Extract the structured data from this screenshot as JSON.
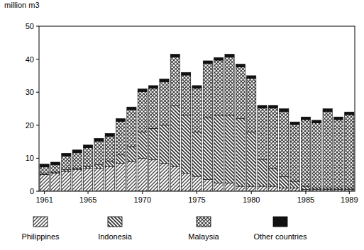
{
  "chart_data": {
    "type": "bar",
    "stacked": true,
    "y_label": "million m3",
    "categories": [
      "1961",
      null,
      null,
      null,
      "1965",
      null,
      null,
      null,
      null,
      "1970",
      null,
      null,
      null,
      null,
      "1975",
      null,
      null,
      null,
      null,
      "1980",
      null,
      null,
      null,
      null,
      "1985",
      null,
      null,
      null,
      "1989"
    ],
    "ylim": [
      0,
      50
    ],
    "yticks": [
      0,
      10,
      20,
      30,
      40,
      50
    ],
    "legend": "bottom",
    "grid": false,
    "series": [
      {
        "name": "Philippines",
        "color": "#444444",
        "values": [
          5,
          5.5,
          6,
          6.5,
          7,
          7,
          7.5,
          8.5,
          9,
          10,
          9.5,
          8.5,
          7.5,
          5.5,
          4.5,
          3.5,
          2.5,
          2.5,
          1.5,
          1.5,
          1.5,
          1.5,
          1,
          1,
          0.5,
          0.5,
          0.5,
          0.5,
          0.5
        ]
      },
      {
        "name": "Indonesia",
        "color": "#333333",
        "values": [
          0.2,
          0.3,
          0.5,
          0.5,
          0.5,
          1,
          1.5,
          2.5,
          4.5,
          8,
          9.5,
          11.5,
          18.5,
          17.5,
          13.5,
          19,
          20.5,
          20.5,
          20.5,
          16.5,
          8,
          5.5,
          3.5,
          2,
          1,
          0.5,
          0.5,
          0.5,
          0.5
        ]
      },
      {
        "name": "Malaysia",
        "color": "#333333",
        "values": [
          2.2,
          2.2,
          4.2,
          4.7,
          5.7,
          7.2,
          7.7,
          10.2,
          11.2,
          12.2,
          12.2,
          13.2,
          14.7,
          12.2,
          13.2,
          16.2,
          16.7,
          17.7,
          15.7,
          16.2,
          15.7,
          18.2,
          19.7,
          17.2,
          20.2,
          19.7,
          23.2,
          20.7,
          22.2
        ]
      },
      {
        "name": "Other countries",
        "color": "#111111",
        "values": [
          0.8,
          0.8,
          0.8,
          0.8,
          0.8,
          0.8,
          0.8,
          0.8,
          0.8,
          0.8,
          0.8,
          0.8,
          0.8,
          0.8,
          0.8,
          0.8,
          0.8,
          0.8,
          0.8,
          0.8,
          0.8,
          0.8,
          0.8,
          0.8,
          0.8,
          0.8,
          0.8,
          0.8,
          0.8
        ]
      }
    ]
  }
}
